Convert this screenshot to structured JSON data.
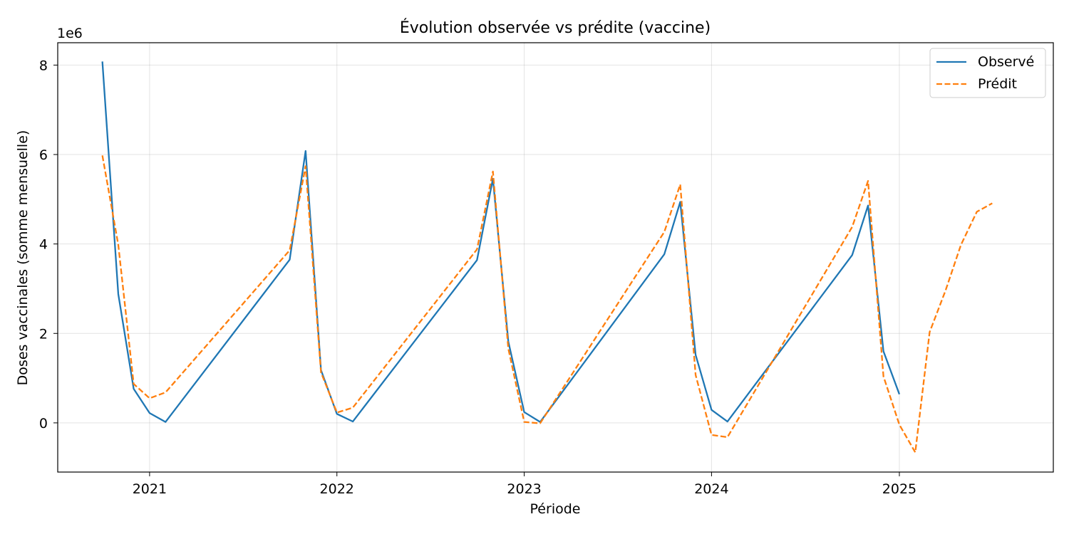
{
  "chart_data": {
    "type": "line",
    "title": "Évolution observée vs prédite (vaccine)",
    "xlabel": "Période",
    "ylabel": "Doses vaccinales (somme mensuelle)",
    "y_offset_label": "1e6",
    "x_tick_labels": [
      "2021",
      "2022",
      "2023",
      "2024",
      "2025"
    ],
    "y_tick_labels": [
      "0",
      "2",
      "4",
      "6",
      "8"
    ],
    "y_tick_values": [
      0,
      2,
      4,
      6,
      8
    ],
    "xlim": [
      "2020-07-06",
      "2025-10-28"
    ],
    "ylim": [
      -1.1,
      8.5
    ],
    "y_unit_multiplier": 1000000,
    "grid": true,
    "legend_position": "top-right",
    "series": [
      {
        "name": "Observé",
        "color": "#1f77b4",
        "dash": "solid",
        "points": [
          [
            "2020-10-01",
            8.08
          ],
          [
            "2020-11-01",
            2.88
          ],
          [
            "2020-12-01",
            0.76
          ],
          [
            "2021-01-01",
            0.22
          ],
          [
            "2021-02-01",
            0.02
          ],
          [
            "2021-10-01",
            3.65
          ],
          [
            "2021-11-01",
            6.08
          ],
          [
            "2021-12-01",
            1.18
          ],
          [
            "2022-01-01",
            0.2
          ],
          [
            "2022-02-01",
            0.03
          ],
          [
            "2022-10-01",
            3.64
          ],
          [
            "2022-11-01",
            5.46
          ],
          [
            "2022-12-01",
            1.82
          ],
          [
            "2023-01-01",
            0.24
          ],
          [
            "2023-02-01",
            0.02
          ],
          [
            "2023-10-01",
            3.77
          ],
          [
            "2023-11-01",
            4.94
          ],
          [
            "2023-12-01",
            1.52
          ],
          [
            "2024-01-01",
            0.29
          ],
          [
            "2024-02-01",
            0.03
          ],
          [
            "2024-10-01",
            3.75
          ],
          [
            "2024-11-01",
            4.86
          ],
          [
            "2024-12-01",
            1.6
          ],
          [
            "2025-01-01",
            0.64
          ]
        ]
      },
      {
        "name": "Prédit",
        "color": "#ff7f0e",
        "dash": "dashed",
        "points": [
          [
            "2020-10-01",
            5.98
          ],
          [
            "2020-11-01",
            3.98
          ],
          [
            "2020-12-01",
            0.87
          ],
          [
            "2021-01-01",
            0.55
          ],
          [
            "2021-02-01",
            0.68
          ],
          [
            "2021-10-01",
            3.86
          ],
          [
            "2021-11-01",
            5.74
          ],
          [
            "2021-12-01",
            1.13
          ],
          [
            "2022-01-01",
            0.23
          ],
          [
            "2022-02-01",
            0.34
          ],
          [
            "2022-10-01",
            3.88
          ],
          [
            "2022-11-01",
            5.62
          ],
          [
            "2022-12-01",
            1.66
          ],
          [
            "2023-01-01",
            0.02
          ],
          [
            "2023-02-01",
            -0.01
          ],
          [
            "2023-10-01",
            4.27
          ],
          [
            "2023-11-01",
            5.33
          ],
          [
            "2023-12-01",
            1.07
          ],
          [
            "2024-01-01",
            -0.27
          ],
          [
            "2024-02-01",
            -0.32
          ],
          [
            "2024-10-01",
            4.38
          ],
          [
            "2024-11-01",
            5.41
          ],
          [
            "2024-12-01",
            1.04
          ],
          [
            "2025-01-01",
            -0.04
          ],
          [
            "2025-02-01",
            -0.66
          ],
          [
            "2025-03-01",
            2.03
          ],
          [
            "2025-04-01",
            2.96
          ],
          [
            "2025-05-01",
            3.98
          ],
          [
            "2025-06-01",
            4.72
          ],
          [
            "2025-07-01",
            4.91
          ]
        ]
      }
    ]
  }
}
